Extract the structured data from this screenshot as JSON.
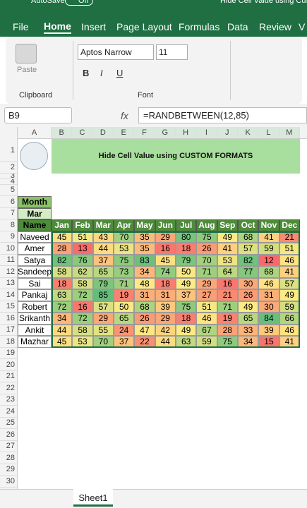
{
  "title_bar": {
    "autosave": "AutoSave",
    "toggle": "Off",
    "title": "Hide Cell Value using Cus"
  },
  "tabs": [
    "File",
    "Home",
    "Insert",
    "Page Layout",
    "Formulas",
    "Data",
    "Review",
    "V"
  ],
  "active_tab": 1,
  "ribbon": {
    "paste": "Paste",
    "clipboard": "Clipboard",
    "font_name": "Aptos Narrow",
    "font_size": "11",
    "font_group": "Font",
    "styles": [
      "B",
      "I",
      "U"
    ]
  },
  "formula_bar": {
    "name_box": "B9",
    "fx": "fx",
    "formula": "=RANDBETWEEN(12,85)"
  },
  "columns": [
    "A",
    "B",
    "C",
    "D",
    "E",
    "F",
    "G",
    "H",
    "I",
    "J",
    "K",
    "L",
    "M"
  ],
  "rows": [
    1,
    2,
    3,
    4,
    5,
    6,
    7,
    8,
    9,
    10,
    11,
    12,
    13,
    14,
    15,
    16,
    17,
    18,
    19,
    20,
    21,
    22,
    23,
    24,
    25,
    26,
    27,
    28,
    29,
    30
  ],
  "sheet": {
    "title": "Hide Cell Value using CUSTOM FORMATS",
    "month_label": "Month",
    "month": "Mar",
    "name_header": "Name",
    "months": [
      "Jan",
      "Feb",
      "Mar",
      "Apr",
      "May",
      "Jun",
      "Jul",
      "Aug",
      "Sep",
      "Oct",
      "Nov",
      "Dec"
    ],
    "people": [
      {
        "name": "Naveed",
        "values": [
          45,
          51,
          43,
          70,
          35,
          29,
          80,
          75,
          49,
          68,
          41,
          21
        ]
      },
      {
        "name": "Amer",
        "values": [
          28,
          13,
          44,
          53,
          35,
          16,
          18,
          26,
          41,
          57,
          59,
          51
        ]
      },
      {
        "name": "Satya",
        "values": [
          82,
          76,
          37,
          75,
          83,
          45,
          79,
          70,
          53,
          82,
          12,
          46
        ]
      },
      {
        "name": "Sandeep",
        "values": [
          58,
          62,
          65,
          73,
          34,
          74,
          50,
          71,
          64,
          77,
          68,
          41
        ]
      },
      {
        "name": "Sai",
        "values": [
          18,
          58,
          79,
          71,
          48,
          18,
          49,
          29,
          16,
          30,
          46,
          57
        ]
      },
      {
        "name": "Pankaj",
        "values": [
          63,
          72,
          85,
          19,
          31,
          31,
          37,
          27,
          21,
          26,
          31,
          49
        ]
      },
      {
        "name": "Robert",
        "values": [
          72,
          16,
          57,
          50,
          68,
          39,
          75,
          51,
          71,
          49,
          30,
          59
        ]
      },
      {
        "name": "Srikanth",
        "values": [
          34,
          72,
          29,
          65,
          26,
          29,
          18,
          46,
          19,
          65,
          84,
          66
        ]
      },
      {
        "name": "Ankit",
        "values": [
          44,
          58,
          55,
          24,
          47,
          42,
          49,
          67,
          28,
          33,
          39,
          46
        ]
      },
      {
        "name": "Mazhar",
        "values": [
          45,
          53,
          70,
          37,
          22,
          44,
          63,
          59,
          75,
          34,
          15,
          41
        ]
      }
    ],
    "color_scale": {
      "low": "#f8696b",
      "mid": "#ffeb84",
      "high": "#63be7b"
    }
  },
  "sheet_tab": "Sheet1"
}
